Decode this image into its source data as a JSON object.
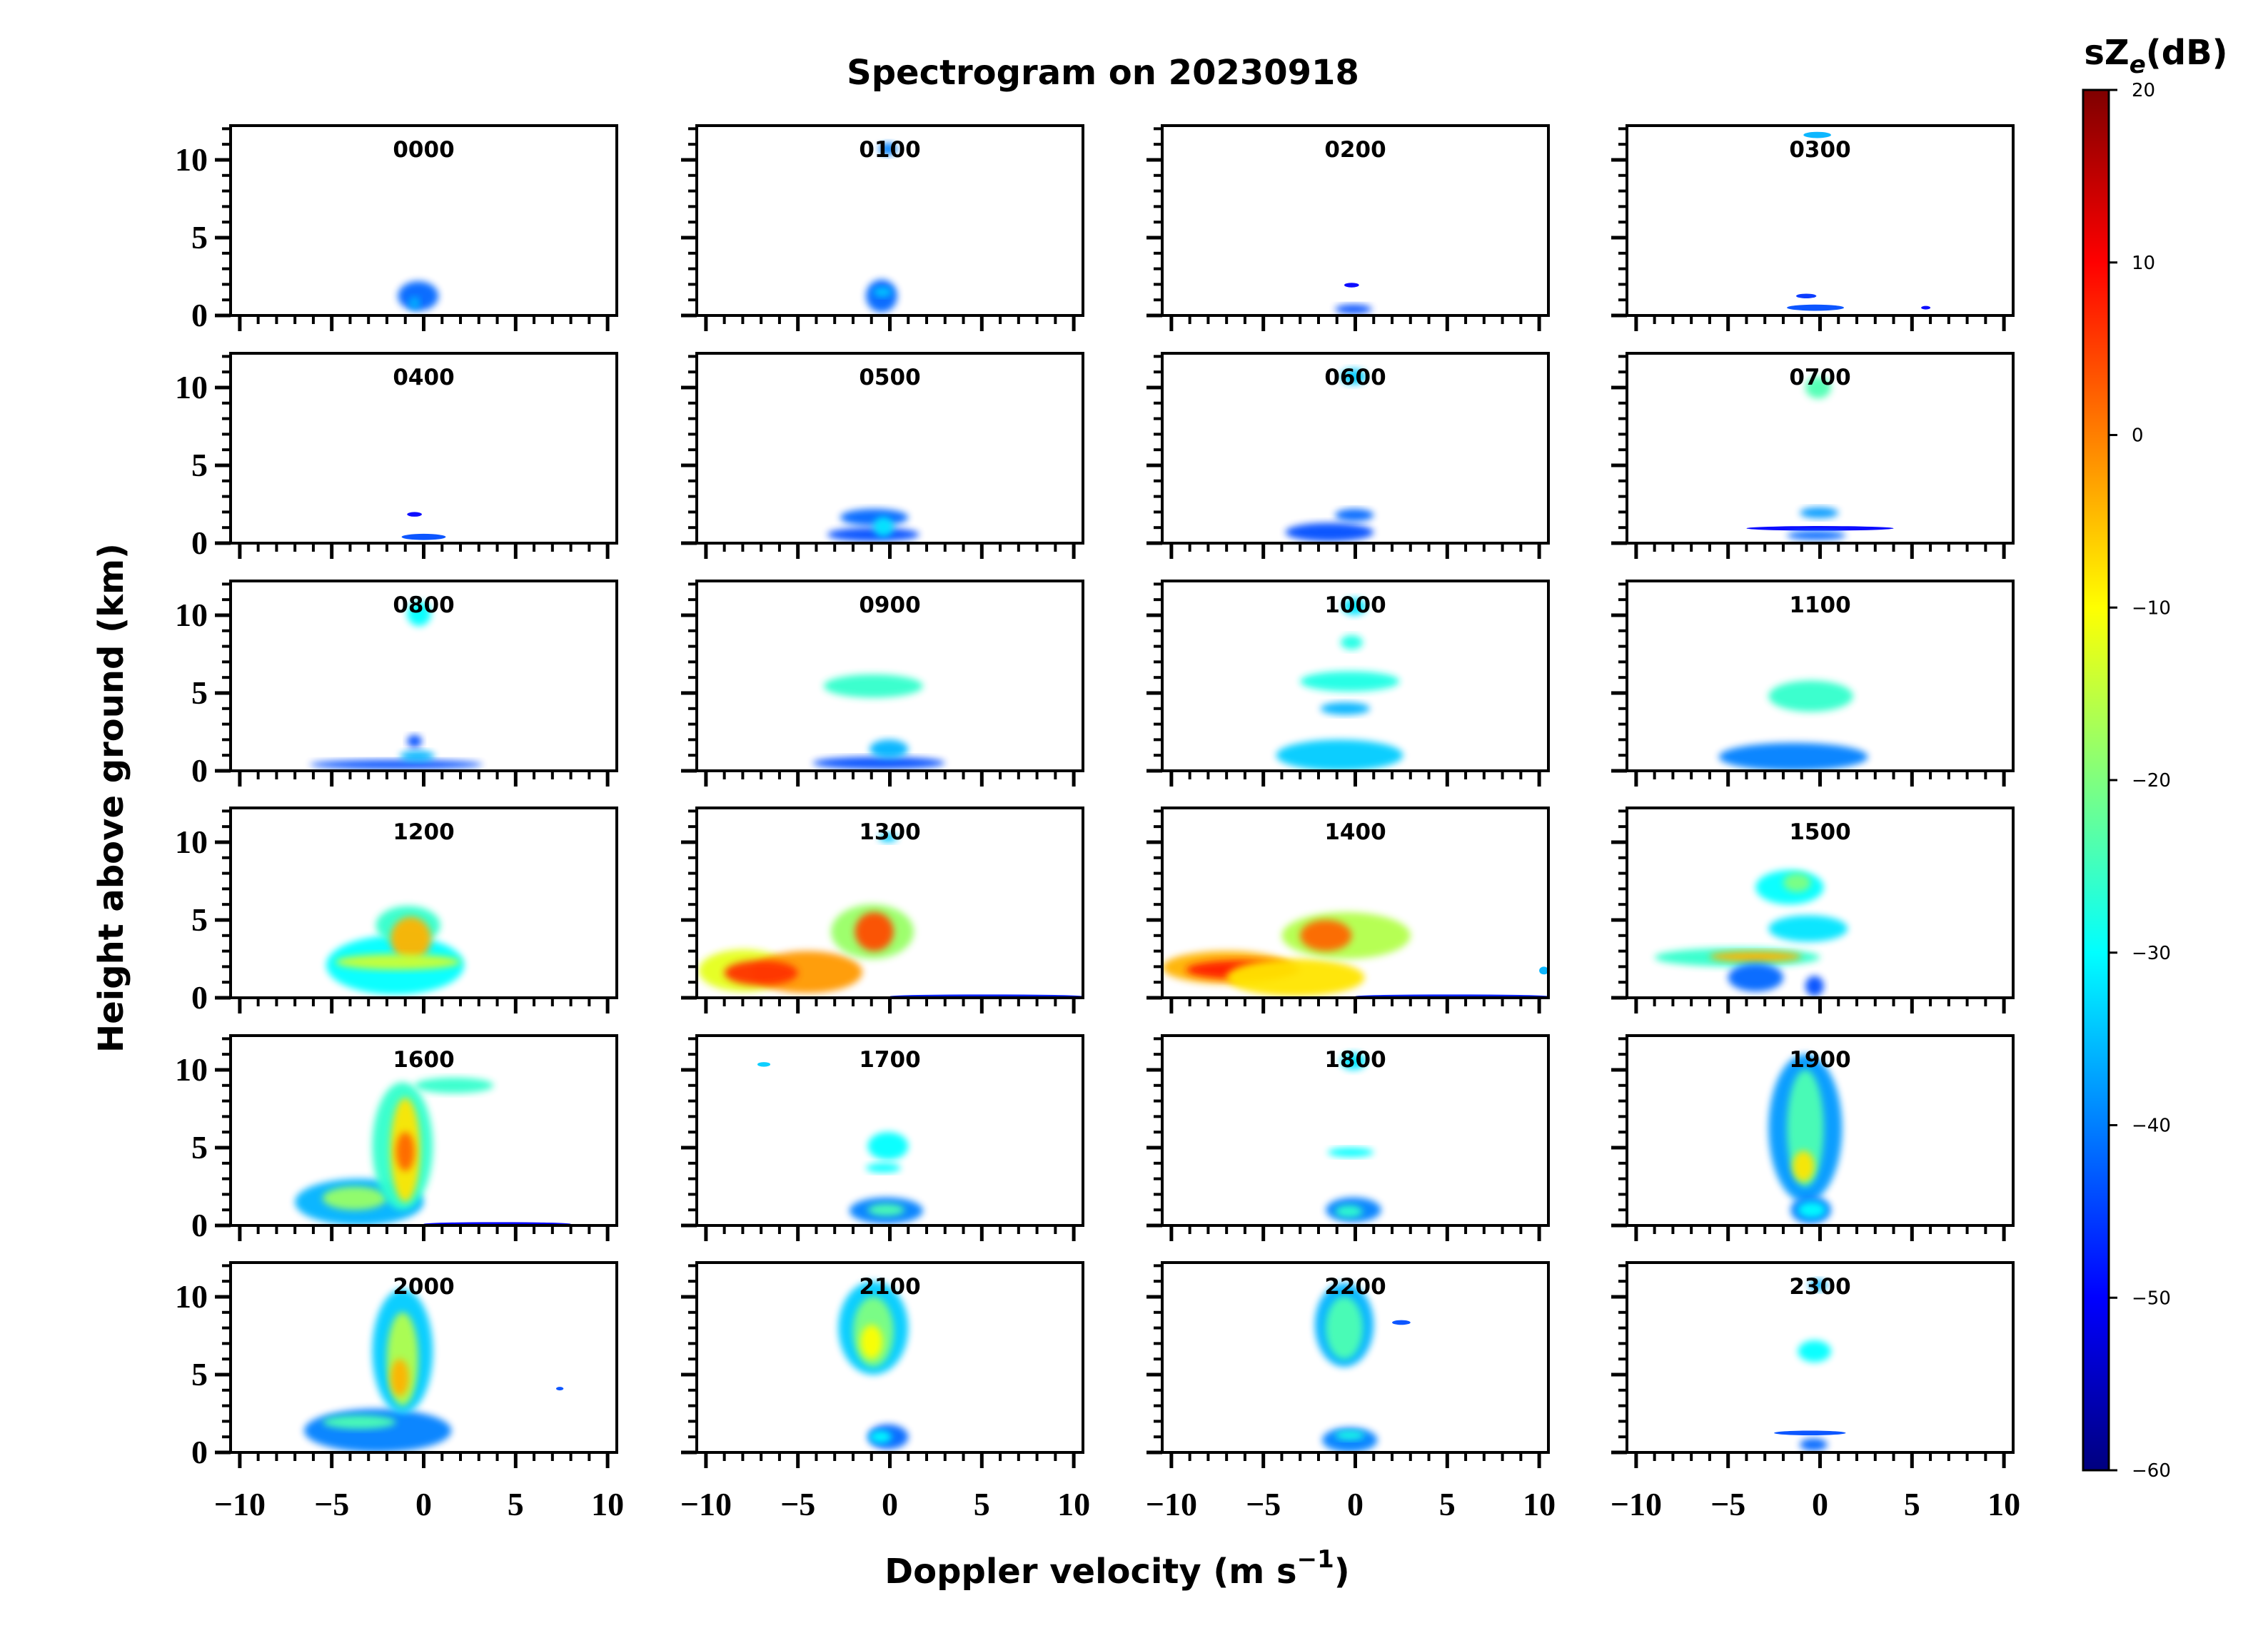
{
  "chart_data": {
    "type": "heatmap",
    "title": "Spectrogram on 20230918",
    "xlabel": "Doppler velocity (m s⁻¹)",
    "ylabel": "Height above ground (km)",
    "xlim": [
      -10.5,
      10.5
    ],
    "ylim": [
      0,
      12.2
    ],
    "xticks": [
      -10,
      -5,
      0,
      5,
      10
    ],
    "xtick_labels": [
      "−10",
      "−5",
      "0",
      "5",
      "10"
    ],
    "yticks": [
      0,
      5,
      10
    ],
    "ytick_labels": [
      "0",
      "5",
      "10"
    ],
    "colorbar": {
      "label": "sZe(dB)",
      "label_main": "sZ",
      "label_sub": "e",
      "label_unit": "(dB)",
      "range": [
        -60,
        20
      ],
      "ticks": [
        20,
        10,
        0,
        -10,
        -20,
        -30,
        -40,
        -50,
        -60
      ],
      "tick_labels": [
        "20",
        "10",
        "0",
        "−10",
        "−20",
        "−30",
        "−40",
        "−50",
        "−60"
      ],
      "colormap": "jet",
      "colors": [
        "#00007f",
        "#0000ff",
        "#007fff",
        "#00ffff",
        "#7fff7f",
        "#ffff00",
        "#ff7f00",
        "#ff0000",
        "#7f0000"
      ]
    },
    "panels": [
      {
        "label": "0000",
        "echoes": [
          [
            -1.4,
            0.8,
            0.3,
            2.2,
            -42
          ],
          [
            -0.8,
            -0.2,
            0.4,
            1.2,
            -36
          ]
        ]
      },
      {
        "label": "0100",
        "echoes": [
          [
            -0.6,
            0.4,
            10.3,
            11.1,
            -40
          ],
          [
            -1.3,
            0.4,
            0.2,
            2.3,
            -42
          ],
          [
            -0.9,
            0.1,
            1.2,
            1.8,
            -34
          ]
        ]
      },
      {
        "label": "0200",
        "echoes": [
          [
            -1.1,
            0.9,
            0.1,
            0.7,
            -44
          ],
          [
            -0.6,
            0.2,
            1.8,
            2.1,
            -50
          ]
        ]
      },
      {
        "label": "0300",
        "echoes": [
          [
            -0.9,
            0.6,
            11.4,
            11.8,
            -36
          ],
          [
            -1.8,
            1.3,
            0.3,
            0.7,
            -44
          ],
          [
            -1.3,
            -0.2,
            1.1,
            1.4,
            -46
          ],
          [
            5.5,
            6.0,
            0.4,
            0.6,
            -50
          ]
        ]
      },
      {
        "label": "0400",
        "echoes": [
          [
            -1.2,
            1.2,
            0.2,
            0.6,
            -44
          ],
          [
            -0.9,
            -0.1,
            1.7,
            2.0,
            -50
          ]
        ]
      },
      {
        "label": "0500",
        "echoes": [
          [
            -3.4,
            1.6,
            0.1,
            1.0,
            -44
          ],
          [
            -2.7,
            1.0,
            1.1,
            2.2,
            -42
          ],
          [
            -0.9,
            0.2,
            0.4,
            1.7,
            -32
          ]
        ]
      },
      {
        "label": "0600",
        "echoes": [
          [
            -0.8,
            0.6,
            10.2,
            11.2,
            -34
          ],
          [
            -3.8,
            1.0,
            0.1,
            1.3,
            -44
          ],
          [
            -1.1,
            1.0,
            1.4,
            2.2,
            -42
          ]
        ]
      },
      {
        "label": "0700",
        "echoes": [
          [
            -0.8,
            0.6,
            9.3,
            10.7,
            -24
          ],
          [
            -4.0,
            4.0,
            0.8,
            1.1,
            -50
          ],
          [
            -1.8,
            1.4,
            0.2,
            0.8,
            -42
          ],
          [
            -1.1,
            1.0,
            1.6,
            2.3,
            -38
          ]
        ]
      },
      {
        "label": "0800",
        "echoes": [
          [
            -0.9,
            0.4,
            9.3,
            10.9,
            -30
          ],
          [
            -6.2,
            3.2,
            0.1,
            0.7,
            -44
          ],
          [
            -1.3,
            0.6,
            0.6,
            1.3,
            -36
          ],
          [
            -0.9,
            -0.1,
            1.5,
            2.3,
            -44
          ]
        ]
      },
      {
        "label": "0900",
        "echoes": [
          [
            -3.6,
            1.8,
            4.7,
            6.2,
            -26
          ],
          [
            -4.2,
            3.0,
            0.1,
            0.9,
            -44
          ],
          [
            -1.1,
            1.0,
            0.8,
            2.0,
            -36
          ]
        ]
      },
      {
        "label": "1000",
        "echoes": [
          [
            -0.7,
            0.6,
            10.0,
            11.1,
            -32
          ],
          [
            -0.8,
            0.4,
            7.8,
            8.7,
            -28
          ],
          [
            -3.0,
            2.4,
            5.1,
            6.4,
            -28
          ],
          [
            -1.9,
            0.8,
            3.6,
            4.4,
            -36
          ],
          [
            -4.3,
            2.6,
            0.0,
            2.0,
            -34
          ]
        ]
      },
      {
        "label": "1100",
        "echoes": [
          [
            -2.8,
            1.8,
            3.8,
            5.8,
            -26
          ],
          [
            -5.5,
            2.6,
            0.0,
            1.8,
            -40
          ]
        ]
      },
      {
        "label": "1200",
        "echoes": [
          [
            -5.3,
            2.2,
            0.2,
            4.0,
            -30
          ],
          [
            -2.6,
            0.9,
            3.4,
            5.9,
            -26
          ],
          [
            -1.8,
            0.4,
            2.4,
            5.2,
            -4
          ],
          [
            -4.8,
            2.0,
            1.8,
            2.8,
            -14
          ]
        ]
      },
      {
        "label": "1300",
        "echoes": [
          [
            -10.4,
            -5.5,
            0.4,
            3.1,
            -12
          ],
          [
            -7.5,
            -1.5,
            0.3,
            3.0,
            -2
          ],
          [
            -9.0,
            -5.0,
            0.8,
            2.4,
            6
          ],
          [
            -3.2,
            1.3,
            2.5,
            6.0,
            -18
          ],
          [
            -1.9,
            0.2,
            3.0,
            5.5,
            4
          ],
          [
            -0.6,
            0.4,
            10.0,
            10.6,
            -34
          ],
          [
            0.0,
            10.5,
            0.0,
            0.2,
            -48
          ]
        ]
      },
      {
        "label": "1400",
        "echoes": [
          [
            -10.5,
            -3.5,
            0.9,
            3.0,
            -4
          ],
          [
            -9.2,
            -3.0,
            1.2,
            2.4,
            8
          ],
          [
            -7.0,
            0.5,
            0.1,
            2.5,
            -8
          ],
          [
            -4.0,
            3.0,
            2.5,
            5.5,
            -16
          ],
          [
            -3.0,
            -0.2,
            3.0,
            5.0,
            2
          ],
          [
            10.0,
            10.5,
            1.5,
            2.0,
            -36
          ],
          [
            0.0,
            10.5,
            0.0,
            0.2,
            -48
          ]
        ]
      },
      {
        "label": "1500",
        "echoes": [
          [
            -3.5,
            0.2,
            6.0,
            8.2,
            -30
          ],
          [
            -2.0,
            -0.5,
            6.8,
            8.0,
            -20
          ],
          [
            -2.8,
            1.5,
            3.6,
            5.3,
            -32
          ],
          [
            -9.0,
            0.0,
            2.0,
            3.2,
            -26
          ],
          [
            -6.0,
            -1.0,
            2.3,
            3.0,
            -4
          ],
          [
            -5.0,
            -2.0,
            0.4,
            2.2,
            -42
          ],
          [
            -0.8,
            0.2,
            0.1,
            1.4,
            -44
          ]
        ]
      },
      {
        "label": "1600",
        "echoes": [
          [
            -7.0,
            0.0,
            0.0,
            3.0,
            -36
          ],
          [
            -5.5,
            -2.0,
            1.0,
            2.5,
            -18
          ],
          [
            -2.8,
            0.5,
            1.0,
            9.2,
            -26
          ],
          [
            -1.8,
            -0.2,
            1.5,
            8.2,
            -8
          ],
          [
            -1.5,
            -0.5,
            3.5,
            6.0,
            2
          ],
          [
            -0.5,
            3.8,
            8.5,
            9.5,
            -26
          ],
          [
            0.0,
            8.0,
            0.0,
            0.2,
            -50
          ]
        ]
      },
      {
        "label": "1700",
        "echoes": [
          [
            -7.2,
            -6.5,
            10.2,
            10.5,
            -34
          ],
          [
            -1.2,
            1.0,
            4.2,
            6.0,
            -30
          ],
          [
            -1.3,
            0.6,
            3.4,
            4.0,
            -30
          ],
          [
            -2.2,
            1.8,
            0.1,
            1.8,
            -40
          ],
          [
            -1.2,
            0.8,
            0.6,
            1.4,
            -24
          ]
        ]
      },
      {
        "label": "1800",
        "echoes": [
          [
            -0.8,
            0.6,
            10.0,
            11.1,
            -32
          ],
          [
            -1.5,
            1.0,
            4.4,
            5.0,
            -30
          ],
          [
            -1.6,
            1.4,
            0.2,
            1.8,
            -40
          ],
          [
            -1.1,
            0.4,
            0.5,
            1.3,
            -26
          ]
        ]
      },
      {
        "label": "1900",
        "echoes": [
          [
            -2.8,
            1.2,
            1.5,
            11.0,
            -38
          ],
          [
            -1.8,
            0.2,
            2.5,
            10.0,
            -24
          ],
          [
            -1.5,
            -0.3,
            2.8,
            4.8,
            -8
          ],
          [
            -1.6,
            0.6,
            0.1,
            1.9,
            -40
          ],
          [
            -1.2,
            0.3,
            0.5,
            1.5,
            -30
          ]
        ]
      },
      {
        "label": "2000",
        "echoes": [
          [
            -6.5,
            1.5,
            0.0,
            2.8,
            -40
          ],
          [
            -5.5,
            -1.5,
            1.5,
            2.4,
            -24
          ],
          [
            -2.8,
            0.5,
            2.5,
            10.5,
            -34
          ],
          [
            -2.0,
            -0.3,
            3.0,
            9.0,
            -16
          ],
          [
            -1.8,
            -0.8,
            3.6,
            6.0,
            -4
          ],
          [
            7.2,
            7.6,
            4.0,
            4.2,
            -44
          ]
        ]
      },
      {
        "label": "2100",
        "echoes": [
          [
            -2.8,
            1.0,
            5.0,
            11.0,
            -34
          ],
          [
            -2.0,
            0.2,
            5.5,
            10.0,
            -20
          ],
          [
            -1.6,
            -0.4,
            6.0,
            8.2,
            -10
          ],
          [
            -1.2,
            1.0,
            0.2,
            1.8,
            -42
          ],
          [
            -1.1,
            0.1,
            0.6,
            1.4,
            -30
          ]
        ]
      },
      {
        "label": "2200",
        "echoes": [
          [
            -2.2,
            1.0,
            5.5,
            10.9,
            -36
          ],
          [
            -1.6,
            0.4,
            6.0,
            10.0,
            -24
          ],
          [
            2.0,
            3.0,
            8.2,
            8.5,
            -44
          ],
          [
            -1.8,
            1.2,
            0.0,
            1.6,
            -40
          ],
          [
            -1.1,
            0.5,
            0.8,
            1.4,
            -28
          ]
        ]
      },
      {
        "label": "2300",
        "echoes": [
          [
            -0.6,
            0.4,
            10.4,
            11.1,
            -36
          ],
          [
            -1.2,
            0.6,
            5.8,
            7.2,
            -30
          ],
          [
            -2.5,
            1.4,
            1.1,
            1.4,
            -44
          ],
          [
            -1.1,
            0.4,
            0.1,
            0.9,
            -42
          ]
        ]
      }
    ]
  }
}
